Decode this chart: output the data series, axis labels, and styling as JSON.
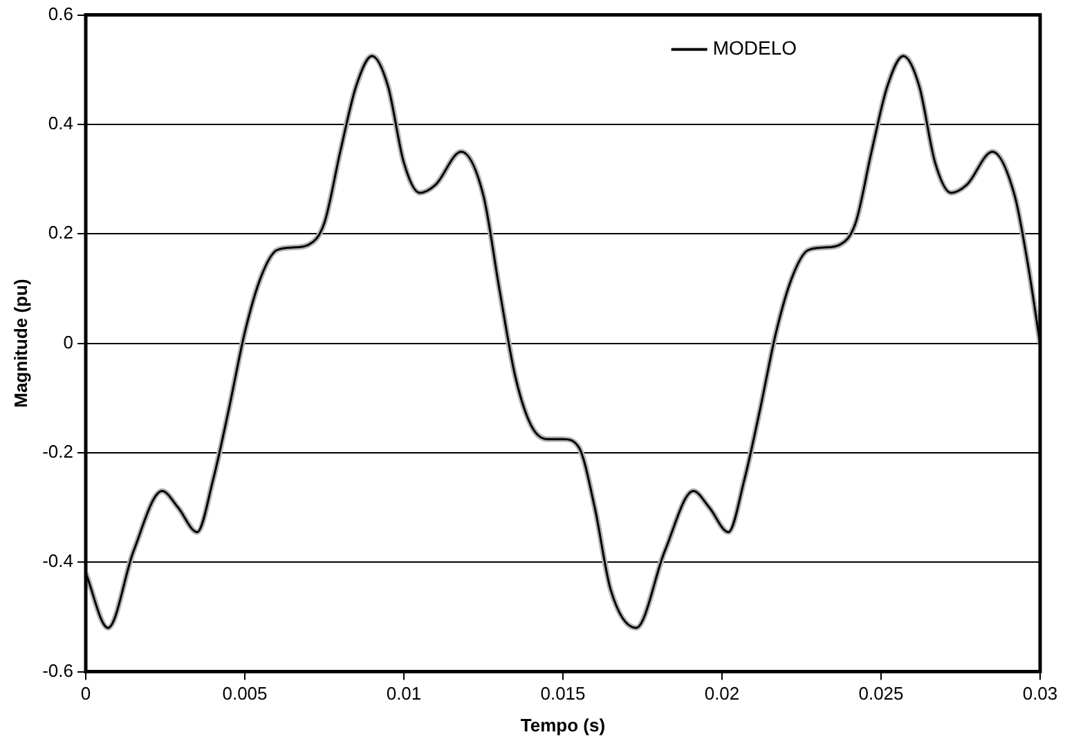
{
  "chart_data": {
    "type": "line",
    "xlabel": "Tempo (s)",
    "ylabel": "Magnitude (pu)",
    "xlim": [
      0,
      0.03
    ],
    "xticks": [
      0,
      0.005,
      0.01,
      0.015,
      0.02,
      0.025,
      0.03
    ],
    "ylim": [
      -0.6,
      0.6
    ],
    "yticks": [
      -0.6,
      -0.4,
      -0.2,
      0,
      0.2,
      0.4,
      0.6
    ],
    "grid": "y",
    "legend": "top right",
    "marker": "none",
    "line_style": "solid",
    "x": [
      0,
      0.0007,
      0.0015,
      0.0024,
      0.0029,
      0.0035,
      0.004,
      0.0045,
      0.005,
      0.0055,
      0.006,
      0.0065,
      0.007,
      0.0075,
      0.008,
      0.0085,
      0.009,
      0.0095,
      0.01,
      0.0105,
      0.011,
      0.0118,
      0.0125,
      0.013,
      0.0135,
      0.014,
      0.0145,
      0.015,
      0.0155,
      0.016,
      0.0165,
      0.0173,
      0.0182,
      0.0191,
      0.0196,
      0.0202,
      0.0207,
      0.0212,
      0.0217,
      0.0222,
      0.0227,
      0.0232,
      0.0237,
      0.0242,
      0.0247,
      0.0252,
      0.0257,
      0.0262,
      0.0267,
      0.0272,
      0.0277,
      0.0285,
      0.0292,
      0.0296,
      0.03
    ],
    "series": [
      {
        "color": "#b4b4b4",
        "values": [
          -0.42,
          -0.52,
          -0.38,
          -0.27,
          -0.3,
          -0.345,
          -0.25,
          -0.12,
          0.02,
          0.12,
          0.17,
          0.175,
          0.18,
          0.22,
          0.35,
          0.47,
          0.525,
          0.47,
          0.33,
          0.275,
          0.29,
          0.35,
          0.27,
          0.1,
          -0.06,
          -0.15,
          -0.175,
          -0.175,
          -0.19,
          -0.3,
          -0.45,
          -0.52,
          -0.38,
          -0.27,
          -0.3,
          -0.345,
          -0.25,
          -0.12,
          0.02,
          0.12,
          0.17,
          0.175,
          0.18,
          0.22,
          0.35,
          0.47,
          0.525,
          0.47,
          0.33,
          0.275,
          0.29,
          0.35,
          0.27,
          0.15,
          0
        ]
      },
      {
        "name": "MODELO",
        "color": "#000000",
        "values": [
          -0.42,
          -0.52,
          -0.38,
          -0.27,
          -0.3,
          -0.345,
          -0.25,
          -0.12,
          0.02,
          0.12,
          0.17,
          0.175,
          0.18,
          0.22,
          0.35,
          0.47,
          0.525,
          0.47,
          0.33,
          0.275,
          0.29,
          0.35,
          0.27,
          0.1,
          -0.06,
          -0.15,
          -0.175,
          -0.175,
          -0.19,
          -0.3,
          -0.45,
          -0.52,
          -0.38,
          -0.27,
          -0.3,
          -0.345,
          -0.25,
          -0.12,
          0.02,
          0.12,
          0.17,
          0.175,
          0.18,
          0.22,
          0.35,
          0.47,
          0.525,
          0.47,
          0.33,
          0.275,
          0.29,
          0.35,
          0.27,
          0.15,
          0
        ]
      }
    ]
  }
}
